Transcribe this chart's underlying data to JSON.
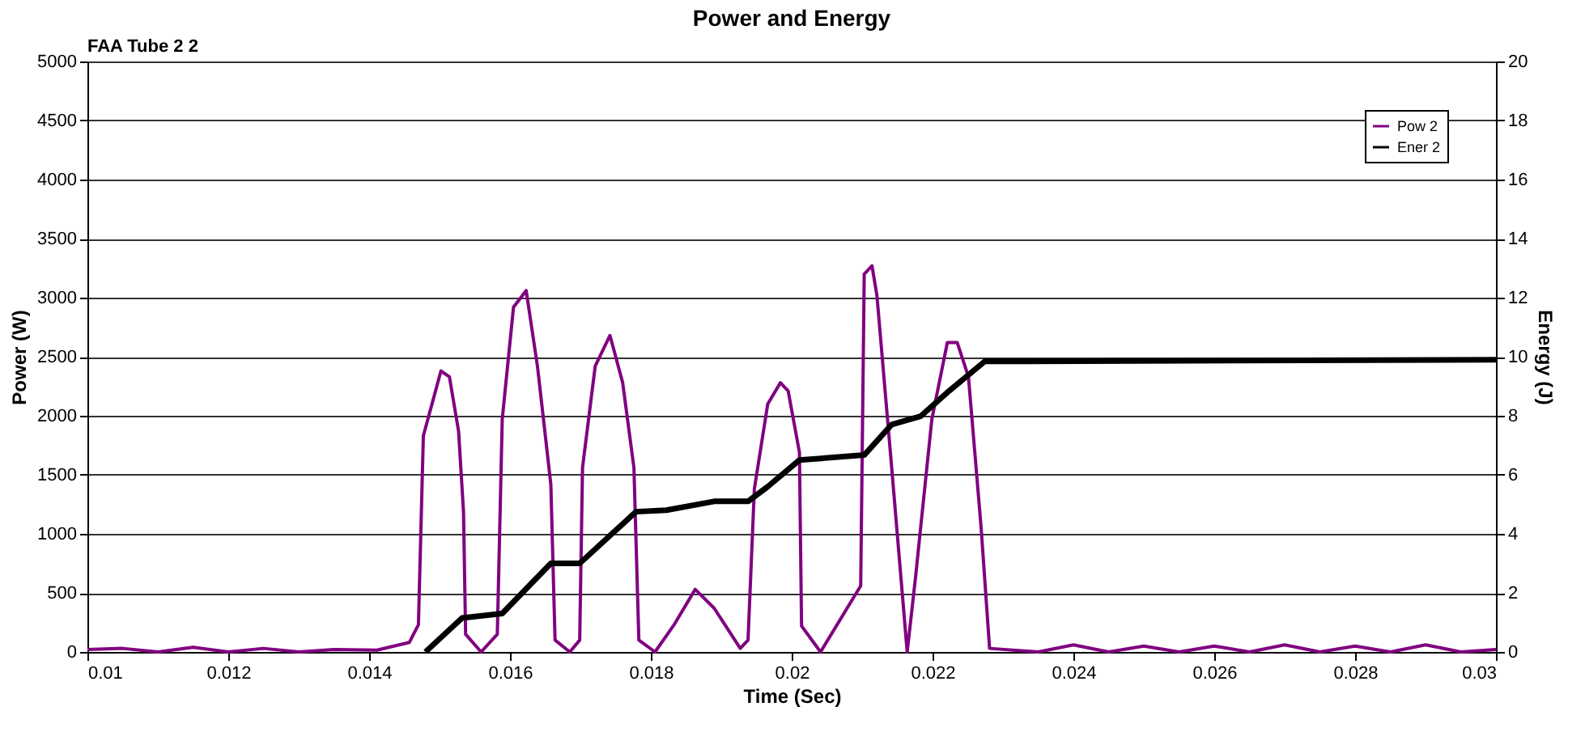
{
  "chart_data": {
    "type": "line",
    "title": "Power and Energy",
    "annotations": [
      "FAA Tube 2 2"
    ],
    "xlabel": "Time (Sec)",
    "ylabel": "Power (W)",
    "y2label": "Energy (J)",
    "xlim": [
      0.01,
      0.03
    ],
    "xticks": [
      0.01,
      0.012,
      0.014,
      0.016,
      0.018,
      0.02,
      0.022,
      0.024,
      0.026,
      0.028,
      0.03
    ],
    "ylim": [
      0,
      5000
    ],
    "yticks": [
      0,
      500,
      1000,
      1500,
      2000,
      2500,
      3000,
      3500,
      4000,
      4500,
      5000
    ],
    "y2lim": [
      0,
      20
    ],
    "y2ticks": [
      0,
      2,
      4,
      6,
      8,
      10,
      12,
      14,
      16,
      18,
      20
    ],
    "grid": "y",
    "legend": "top right",
    "marker": "none",
    "line_style": "solid",
    "series": [
      {
        "name": "Pow 2",
        "color": "#800080",
        "axis": "y",
        "x": [
          0.01,
          0.0105,
          0.011,
          0.0115,
          0.012,
          0.0125,
          0.013,
          0.0135,
          0.01411,
          0.01457,
          0.0147,
          0.01477,
          0.01502,
          0.01514,
          0.01527,
          0.01534,
          0.01537,
          0.01559,
          0.01582,
          0.01589,
          0.01605,
          0.01623,
          0.01639,
          0.01658,
          0.01664,
          0.01685,
          0.01699,
          0.01703,
          0.01721,
          0.01742,
          0.0176,
          0.01776,
          0.01783,
          0.01806,
          0.01833,
          0.01863,
          0.0189,
          0.01927,
          0.01938,
          0.01947,
          0.01966,
          0.01984,
          0.01995,
          0.02011,
          0.02014,
          0.02041,
          0.02098,
          0.02103,
          0.02114,
          0.02121,
          0.02142,
          0.02164,
          0.02176,
          0.02199,
          0.02221,
          0.02235,
          0.02251,
          0.02269,
          0.02281,
          0.0235,
          0.024,
          0.0245,
          0.025,
          0.0255,
          0.026,
          0.0265,
          0.027,
          0.0275,
          0.028,
          0.0285,
          0.029,
          0.0295,
          0.03
        ],
        "values": [
          20,
          30,
          0,
          40,
          0,
          30,
          0,
          20,
          15,
          80,
          230,
          1830,
          2380,
          2330,
          1870,
          1190,
          150,
          0,
          150,
          1970,
          2920,
          3060,
          2420,
          1420,
          100,
          0,
          100,
          1560,
          2420,
          2680,
          2280,
          1560,
          100,
          0,
          230,
          530,
          370,
          30,
          100,
          1380,
          2100,
          2280,
          2210,
          1690,
          220,
          0,
          560,
          3200,
          3270,
          3020,
          1560,
          0,
          640,
          1970,
          2620,
          2620,
          2330,
          1050,
          30,
          0,
          60,
          0,
          50,
          0,
          50,
          0,
          60,
          0,
          50,
          0,
          60,
          0,
          20
        ]
      },
      {
        "name": "Ener 2",
        "color": "#000000",
        "axis": "y2",
        "x": [
          0.0148,
          0.01532,
          0.01589,
          0.01658,
          0.01699,
          0.01779,
          0.01822,
          0.0189,
          0.01938,
          0.01966,
          0.02011,
          0.02103,
          0.02142,
          0.02183,
          0.02224,
          0.02274,
          0.03
        ],
        "values": [
          0,
          1.15,
          1.3,
          3.0,
          3.0,
          4.75,
          4.8,
          5.1,
          5.1,
          5.6,
          6.5,
          6.67,
          7.7,
          7.98,
          8.85,
          9.84,
          9.9
        ]
      }
    ]
  }
}
